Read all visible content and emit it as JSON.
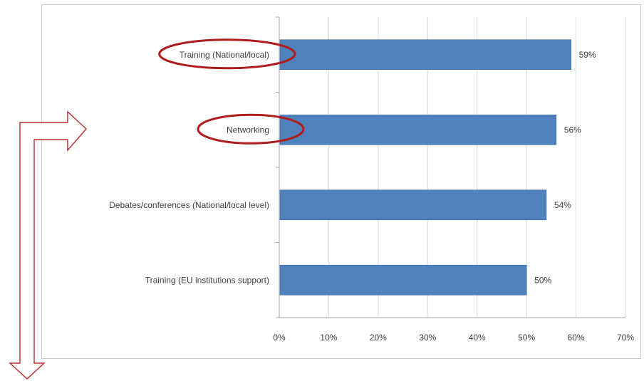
{
  "chart_data": {
    "type": "bar",
    "orientation": "horizontal",
    "categories": [
      "Training (National/local)",
      "Networking",
      "Debates/conferences (National/local level)",
      "Training (EU institutions support)"
    ],
    "values": [
      59,
      56,
      54,
      50
    ],
    "data_labels": [
      "59%",
      "56%",
      "54%",
      "50%"
    ],
    "x_ticks": [
      "0%",
      "10%",
      "20%",
      "30%",
      "40%",
      "50%",
      "60%",
      "70%"
    ],
    "xlim": [
      0,
      70
    ],
    "grid": true,
    "legend": "none",
    "highlighted_categories": [
      "Training (National/local)",
      "Networking"
    ]
  },
  "colors": {
    "bar": "#4f81bd",
    "bar_stroke": "#3a6aa3",
    "grid": "#d9d9d9",
    "axis": "#a6a6a6",
    "highlight_ellipse": "#b01c1c",
    "arrow": "#c0282d"
  },
  "annotations": {
    "ellipses": [
      "highlight-ellipse",
      "highlight-ellipse"
    ],
    "arrow": "bent-arrow-right-and-down"
  }
}
